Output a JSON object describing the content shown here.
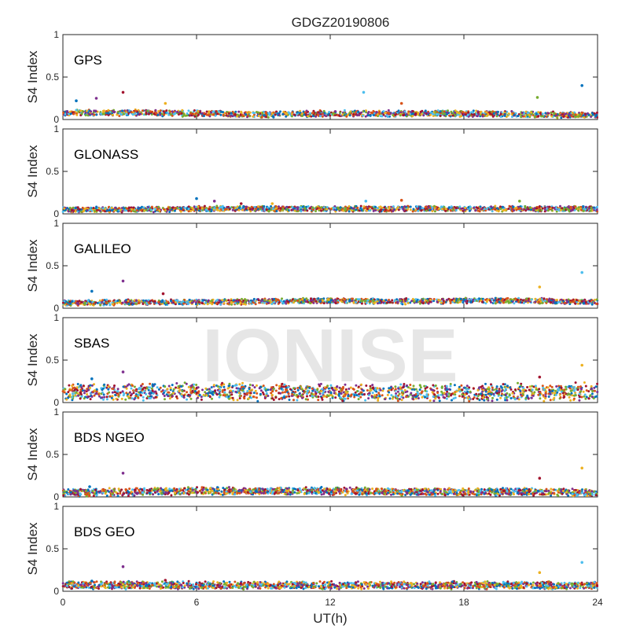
{
  "chart_data": {
    "type": "scatter",
    "title": "GDGZ20190806",
    "xlabel": "UT(h)",
    "ylabel": "S4 Index",
    "xlim": [
      0,
      24
    ],
    "ylim": [
      0,
      1
    ],
    "x_ticks": [
      "0",
      "6",
      "12",
      "18",
      "24"
    ],
    "y_ticks": [
      "0",
      "0.5",
      "1"
    ],
    "watermark": "IONISE",
    "grid": false,
    "series_colors": [
      "#0072BD",
      "#D95319",
      "#EDB120",
      "#7E2F8E",
      "#77AC30",
      "#4DBEEE",
      "#A2142F"
    ],
    "panels": [
      {
        "name": "GPS",
        "baseline": [
          [
            0,
            0.08
          ],
          [
            3,
            0.08
          ],
          [
            6,
            0.07
          ],
          [
            9,
            0.06
          ],
          [
            12,
            0.07
          ],
          [
            15,
            0.07
          ],
          [
            18,
            0.07
          ],
          [
            21,
            0.06
          ],
          [
            24,
            0.05
          ]
        ],
        "spread": 0.04,
        "outliers": [
          [
            0.6,
            0.22
          ],
          [
            1.5,
            0.25
          ],
          [
            2.7,
            0.32
          ],
          [
            4.6,
            0.19
          ],
          [
            13.5,
            0.32
          ],
          [
            15.2,
            0.19
          ],
          [
            21.3,
            0.26
          ],
          [
            23.3,
            0.4
          ]
        ]
      },
      {
        "name": "GLONASS",
        "baseline": [
          [
            0,
            0.05
          ],
          [
            3,
            0.05
          ],
          [
            6,
            0.06
          ],
          [
            9,
            0.06
          ],
          [
            12,
            0.06
          ],
          [
            15,
            0.06
          ],
          [
            18,
            0.06
          ],
          [
            21,
            0.06
          ],
          [
            24,
            0.06
          ]
        ],
        "spread": 0.035,
        "outliers": [
          [
            6,
            0.18
          ],
          [
            6.8,
            0.15
          ],
          [
            8,
            0.12
          ],
          [
            9.4,
            0.12
          ],
          [
            13.6,
            0.15
          ],
          [
            15.2,
            0.16
          ],
          [
            20.5,
            0.15
          ]
        ]
      },
      {
        "name": "GALILEO",
        "baseline": [
          [
            0,
            0.06
          ],
          [
            3,
            0.07
          ],
          [
            6,
            0.07
          ],
          [
            9,
            0.08
          ],
          [
            12,
            0.09
          ],
          [
            15,
            0.08
          ],
          [
            18,
            0.09
          ],
          [
            21,
            0.09
          ],
          [
            24,
            0.07
          ]
        ],
        "spread": 0.035,
        "outliers": [
          [
            1.3,
            0.2
          ],
          [
            2.7,
            0.32
          ],
          [
            4.5,
            0.17
          ],
          [
            21.4,
            0.25
          ],
          [
            23.3,
            0.42
          ]
        ]
      },
      {
        "name": "SBAS",
        "baseline": [
          [
            0,
            0.12
          ],
          [
            3,
            0.13
          ],
          [
            6,
            0.13
          ],
          [
            9,
            0.12
          ],
          [
            12,
            0.12
          ],
          [
            15,
            0.12
          ],
          [
            18,
            0.12
          ],
          [
            21,
            0.12
          ],
          [
            24,
            0.13
          ]
        ],
        "spread": 0.11,
        "outliers": [
          [
            1.3,
            0.28
          ],
          [
            2.7,
            0.36
          ],
          [
            21.4,
            0.3
          ],
          [
            23.3,
            0.44
          ]
        ]
      },
      {
        "name": "BDS NGEO",
        "baseline": [
          [
            0,
            0.05
          ],
          [
            3,
            0.06
          ],
          [
            6,
            0.07
          ],
          [
            9,
            0.07
          ],
          [
            12,
            0.07
          ],
          [
            15,
            0.06
          ],
          [
            18,
            0.06
          ],
          [
            21,
            0.06
          ],
          [
            24,
            0.05
          ]
        ],
        "spread": 0.05,
        "outliers": [
          [
            1.2,
            0.12
          ],
          [
            2.7,
            0.28
          ],
          [
            21.4,
            0.22
          ],
          [
            23.3,
            0.34
          ]
        ]
      },
      {
        "name": "BDS GEO",
        "baseline": [
          [
            0,
            0.07
          ],
          [
            3,
            0.07
          ],
          [
            6,
            0.07
          ],
          [
            9,
            0.07
          ],
          [
            12,
            0.07
          ],
          [
            15,
            0.07
          ],
          [
            18,
            0.07
          ],
          [
            21,
            0.07
          ],
          [
            24,
            0.07
          ]
        ],
        "spread": 0.05,
        "outliers": [
          [
            1.3,
            0.12
          ],
          [
            2.7,
            0.29
          ],
          [
            4.6,
            0.13
          ],
          [
            21.4,
            0.22
          ],
          [
            23.3,
            0.34
          ]
        ]
      }
    ]
  }
}
